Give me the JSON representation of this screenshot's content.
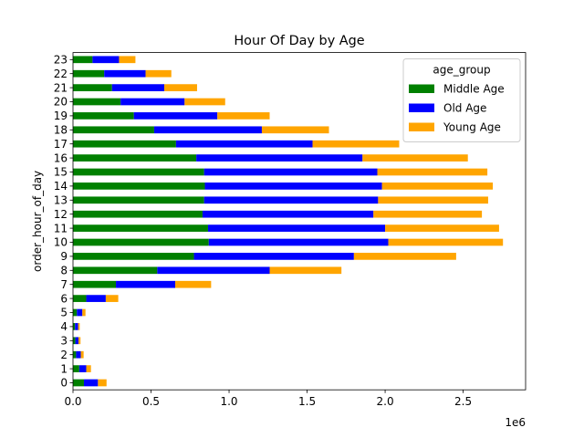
{
  "chart_data": {
    "type": "bar",
    "orientation": "horizontal",
    "stacked": true,
    "title": "Hour Of Day by Age",
    "xlabel": "",
    "ylabel": "order_hour_of_day",
    "x_scale_label": "1e6",
    "xlim": [
      0,
      2.9
    ],
    "xticks": [
      0.0,
      0.5,
      1.0,
      1.5,
      2.0,
      2.5
    ],
    "xtick_labels": [
      "0.0",
      "0.5",
      "1.0",
      "1.5",
      "2.0",
      "2.5"
    ],
    "grid": false,
    "legend": {
      "title": "age_group",
      "placement": "top-right"
    },
    "categories": [
      "0",
      "1",
      "2",
      "3",
      "4",
      "5",
      "6",
      "7",
      "8",
      "9",
      "10",
      "11",
      "12",
      "13",
      "14",
      "15",
      "16",
      "17",
      "18",
      "19",
      "20",
      "21",
      "22",
      "23"
    ],
    "series": [
      {
        "name": "Middle Age",
        "color": "#008000",
        "values": [
          0.07,
          0.04,
          0.02,
          0.015,
          0.013,
          0.025,
          0.085,
          0.275,
          0.54,
          0.775,
          0.87,
          0.865,
          0.83,
          0.84,
          0.845,
          0.84,
          0.79,
          0.66,
          0.52,
          0.39,
          0.305,
          0.25,
          0.2,
          0.125
        ]
      },
      {
        "name": "Old Age",
        "color": "#0000ff",
        "values": [
          0.09,
          0.045,
          0.03,
          0.02,
          0.02,
          0.035,
          0.125,
          0.38,
          0.72,
          1.025,
          1.15,
          1.135,
          1.095,
          1.115,
          1.135,
          1.11,
          1.065,
          0.875,
          0.69,
          0.535,
          0.41,
          0.335,
          0.265,
          0.17
        ]
      },
      {
        "name": "Young Age",
        "color": "#ffa500",
        "values": [
          0.055,
          0.03,
          0.018,
          0.013,
          0.01,
          0.02,
          0.08,
          0.23,
          0.46,
          0.655,
          0.735,
          0.73,
          0.695,
          0.705,
          0.71,
          0.705,
          0.675,
          0.555,
          0.43,
          0.335,
          0.26,
          0.21,
          0.165,
          0.105
        ]
      }
    ]
  }
}
